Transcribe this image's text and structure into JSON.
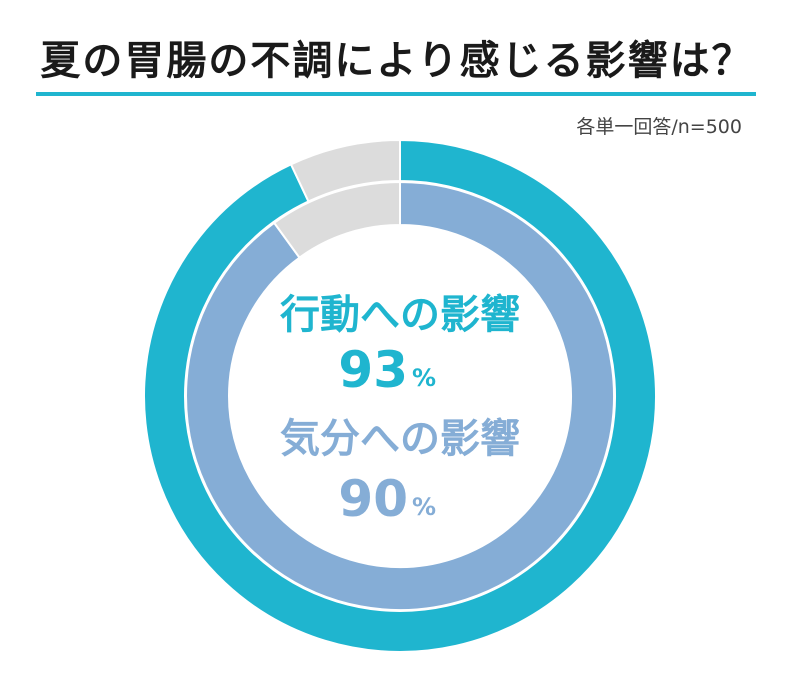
{
  "title": "夏の胃腸の不調により感じる影響は？",
  "note": "各単一回答/n=500",
  "colors": {
    "outer": "#1fb5cf",
    "inner": "#85add6",
    "remainder": "#dcdcdc",
    "rule": "#1fb5cf"
  },
  "chart_data": {
    "type": "pie",
    "style": "nested-donut",
    "series": [
      {
        "name": "行動への影響",
        "value": 93,
        "unit": "%"
      },
      {
        "name": "気分への影響",
        "value": 90,
        "unit": "%"
      }
    ]
  }
}
